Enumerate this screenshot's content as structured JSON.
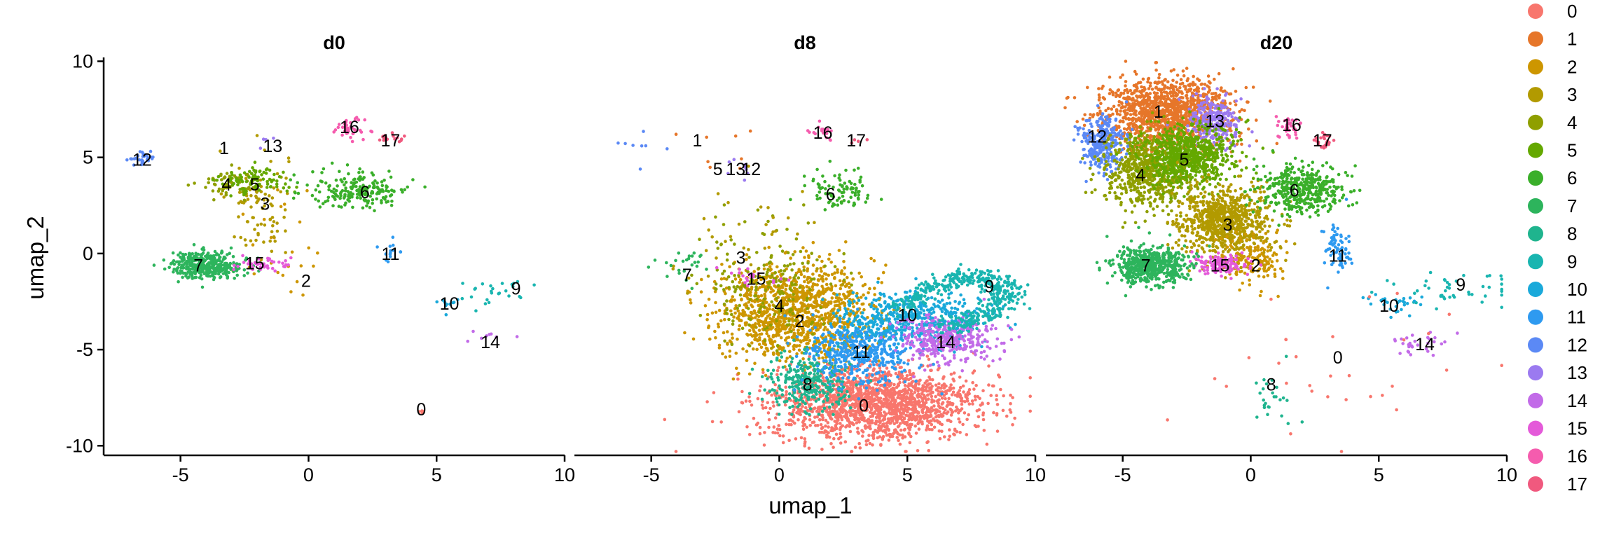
{
  "chart_data": {
    "type": "scatter",
    "title": "",
    "xlabel": "umap_1",
    "ylabel": "umap_2",
    "xlim": [
      -8,
      10
    ],
    "ylim": [
      -10.5,
      10.2
    ],
    "x_ticks": [
      -5,
      0,
      5,
      10
    ],
    "x_tick_labels": [
      "-5",
      "0",
      "5",
      "10"
    ],
    "y_ticks": [
      10,
      5,
      0,
      -5,
      -10
    ],
    "y_tick_labels": [
      "10",
      "5",
      "0",
      "-5",
      "-10"
    ],
    "grid": false,
    "legend_position": "right",
    "legend": [
      {
        "label": "0",
        "color": "#F8766D"
      },
      {
        "label": "1",
        "color": "#E6762A"
      },
      {
        "label": "2",
        "color": "#CD9600"
      },
      {
        "label": "3",
        "color": "#B29A00"
      },
      {
        "label": "4",
        "color": "#8F9F00"
      },
      {
        "label": "5",
        "color": "#64A800"
      },
      {
        "label": "6",
        "color": "#3AAF2A"
      },
      {
        "label": "7",
        "color": "#2DB45C"
      },
      {
        "label": "8",
        "color": "#1FB48E"
      },
      {
        "label": "9",
        "color": "#19B5B0"
      },
      {
        "label": "10",
        "color": "#1AA9DA"
      },
      {
        "label": "11",
        "color": "#2E9AF0"
      },
      {
        "label": "12",
        "color": "#5B89F5"
      },
      {
        "label": "13",
        "color": "#9B7AF0"
      },
      {
        "label": "14",
        "color": "#C26BE8"
      },
      {
        "label": "15",
        "color": "#E45AD9"
      },
      {
        "label": "16",
        "color": "#F55CAE"
      },
      {
        "label": "17",
        "color": "#F0597E"
      }
    ],
    "panels": [
      {
        "title": "d0",
        "cluster_labels": [
          {
            "cluster": "0",
            "x": 4.4,
            "y": -8.1
          },
          {
            "cluster": "1",
            "x": -3.3,
            "y": 5.5
          },
          {
            "cluster": "2",
            "x": -0.1,
            "y": -1.4
          },
          {
            "cluster": "3",
            "x": -1.7,
            "y": 2.6
          },
          {
            "cluster": "4",
            "x": -3.2,
            "y": 3.6
          },
          {
            "cluster": "5",
            "x": -2.1,
            "y": 3.6
          },
          {
            "cluster": "6",
            "x": 2.2,
            "y": 3.2
          },
          {
            "cluster": "7",
            "x": -4.3,
            "y": -0.6
          },
          {
            "cluster": "9",
            "x": 8.1,
            "y": -1.8
          },
          {
            "cluster": "10",
            "x": 5.5,
            "y": -2.6
          },
          {
            "cluster": "11",
            "x": 3.2,
            "y": 0.0
          },
          {
            "cluster": "12",
            "x": -6.5,
            "y": 4.9
          },
          {
            "cluster": "13",
            "x": -1.4,
            "y": 5.6
          },
          {
            "cluster": "14",
            "x": 7.1,
            "y": -4.6
          },
          {
            "cluster": "15",
            "x": -2.1,
            "y": -0.5
          },
          {
            "cluster": "16",
            "x": 1.6,
            "y": 6.6
          },
          {
            "cluster": "17",
            "x": 3.2,
            "y": 5.9
          }
        ],
        "clusters": [
          {
            "cluster": "0",
            "cx": 4.4,
            "cy": -8.1,
            "sx": 0.1,
            "sy": 0.12,
            "n": 4
          },
          {
            "cluster": "2",
            "cx": -1.5,
            "cy": 0.4,
            "sx": 1.4,
            "sy": 2.0,
            "n": 28
          },
          {
            "cluster": "3",
            "cx": -2.0,
            "cy": 2.6,
            "sx": 0.6,
            "sy": 1.4,
            "n": 90
          },
          {
            "cluster": "4",
            "cx": -3.0,
            "cy": 3.7,
            "sx": 0.6,
            "sy": 0.35,
            "n": 70
          },
          {
            "cluster": "5",
            "cx": -2.0,
            "cy": 3.8,
            "sx": 0.7,
            "sy": 0.35,
            "n": 90
          },
          {
            "cluster": "6",
            "cx": 2.0,
            "cy": 3.3,
            "sx": 1.0,
            "sy": 0.5,
            "n": 200
          },
          {
            "cluster": "7",
            "cx": -4.0,
            "cy": -0.6,
            "sx": 0.7,
            "sy": 0.35,
            "n": 350
          },
          {
            "cluster": "9",
            "cx": 7.5,
            "cy": -2.0,
            "sx": 1.0,
            "sy": 0.35,
            "n": 26
          },
          {
            "cluster": "10",
            "cx": 5.4,
            "cy": -2.6,
            "sx": 0.3,
            "sy": 0.25,
            "n": 10
          },
          {
            "cluster": "11",
            "cx": 3.2,
            "cy": 0.0,
            "sx": 0.25,
            "sy": 0.3,
            "n": 14
          },
          {
            "cluster": "12",
            "cx": -6.5,
            "cy": 5.0,
            "sx": 0.3,
            "sy": 0.2,
            "n": 30
          },
          {
            "cluster": "13",
            "cx": -1.5,
            "cy": 5.8,
            "sx": 0.2,
            "sy": 0.2,
            "n": 4
          },
          {
            "cluster": "14",
            "cx": 7.1,
            "cy": -4.3,
            "sx": 0.4,
            "sy": 0.2,
            "n": 8
          },
          {
            "cluster": "15",
            "cx": -1.8,
            "cy": -0.6,
            "sx": 0.6,
            "sy": 0.2,
            "n": 40
          },
          {
            "cluster": "16",
            "cx": 1.6,
            "cy": 6.5,
            "sx": 0.3,
            "sy": 0.25,
            "n": 40
          },
          {
            "cluster": "17",
            "cx": 3.1,
            "cy": 6.0,
            "sx": 0.25,
            "sy": 0.12,
            "n": 20
          }
        ]
      },
      {
        "title": "d8",
        "cluster_labels": [
          {
            "cluster": "0",
            "x": 3.3,
            "y": -7.9
          },
          {
            "cluster": "1",
            "x": -3.2,
            "y": 5.9
          },
          {
            "cluster": "2",
            "x": 0.8,
            "y": -3.5
          },
          {
            "cluster": "3",
            "x": -1.5,
            "y": -0.2
          },
          {
            "cluster": "4",
            "x": 0.0,
            "y": -2.7
          },
          {
            "cluster": "5",
            "x": -2.4,
            "y": 4.4
          },
          {
            "cluster": "6",
            "x": 2.0,
            "y": 3.1
          },
          {
            "cluster": "7",
            "x": -3.6,
            "y": -1.1
          },
          {
            "cluster": "8",
            "x": 1.1,
            "y": -6.8
          },
          {
            "cluster": "9",
            "x": 8.2,
            "y": -1.7
          },
          {
            "cluster": "10",
            "x": 5.0,
            "y": -3.2
          },
          {
            "cluster": "11",
            "x": 3.2,
            "y": -5.1
          },
          {
            "cluster": "12",
            "x": -1.1,
            "y": 4.4
          },
          {
            "cluster": "13",
            "x": -1.7,
            "y": 4.4
          },
          {
            "cluster": "14",
            "x": 6.5,
            "y": -4.6
          },
          {
            "cluster": "15",
            "x": -0.9,
            "y": -1.3
          },
          {
            "cluster": "16",
            "x": 1.7,
            "y": 6.3
          },
          {
            "cluster": "17",
            "x": 3.0,
            "y": 5.9
          }
        ],
        "clusters": [
          {
            "cluster": "0",
            "cx": 3.8,
            "cy": -7.8,
            "sx": 2.0,
            "sy": 0.95,
            "n": 1700
          },
          {
            "cluster": "2",
            "cx": 0.7,
            "cy": -3.0,
            "sx": 1.5,
            "sy": 1.2,
            "n": 1200
          },
          {
            "cluster": "4",
            "cx": -0.5,
            "cy": -1.6,
            "sx": 1.3,
            "sy": 1.5,
            "n": 200
          },
          {
            "cluster": "3",
            "cx": -1.0,
            "cy": 0.5,
            "sx": 1.8,
            "sy": 1.6,
            "n": 40
          },
          {
            "cluster": "8",
            "cx": 1.1,
            "cy": -6.7,
            "sx": 0.8,
            "sy": 0.7,
            "n": 300
          },
          {
            "cluster": "11",
            "cx": 3.2,
            "cy": -5.2,
            "sx": 1.0,
            "sy": 0.8,
            "n": 450
          },
          {
            "cluster": "10",
            "cx": 5.1,
            "cy": -3.4,
            "sx": 1.4,
            "sy": 0.7,
            "n": 500
          },
          {
            "cluster": "14",
            "cx": 6.5,
            "cy": -4.5,
            "sx": 1.0,
            "sy": 0.6,
            "n": 350
          },
          {
            "cluster": "6",
            "cx": 2.3,
            "cy": 3.2,
            "sx": 0.7,
            "sy": 0.5,
            "n": 90
          },
          {
            "cluster": "7",
            "cx": -3.8,
            "cy": -0.8,
            "sx": 0.5,
            "sy": 0.4,
            "n": 25
          },
          {
            "cluster": "15",
            "cx": -1.2,
            "cy": -1.1,
            "sx": 0.6,
            "sy": 0.3,
            "n": 20
          },
          {
            "cluster": "16",
            "cx": 1.7,
            "cy": 6.3,
            "sx": 0.2,
            "sy": 0.3,
            "n": 20
          },
          {
            "cluster": "17",
            "cx": 3.1,
            "cy": 5.9,
            "sx": 0.15,
            "sy": 0.1,
            "n": 4
          },
          {
            "cluster": "13",
            "cx": -1.5,
            "cy": 4.3,
            "sx": 0.4,
            "sy": 0.4,
            "n": 8
          },
          {
            "cluster": "12",
            "cx": -5.8,
            "cy": 5.5,
            "sx": 0.6,
            "sy": 0.6,
            "n": 8
          },
          {
            "cluster": "1",
            "cx": -3.0,
            "cy": 5.5,
            "sx": 1.0,
            "sy": 1.2,
            "n": 8
          }
        ],
        "arcs": [
          {
            "cluster": "9",
            "points": [
              [
                4.6,
                -3.0
              ],
              [
                5.8,
                -1.9
              ],
              [
                7.0,
                -1.3
              ],
              [
                8.2,
                -1.3
              ],
              [
                9.0,
                -1.9
              ],
              [
                8.6,
                -2.8
              ],
              [
                7.6,
                -3.3
              ],
              [
                6.6,
                -3.9
              ]
            ],
            "width": 0.35,
            "n": 450
          }
        ]
      },
      {
        "title": "d20",
        "cluster_labels": [
          {
            "cluster": "0",
            "x": 3.4,
            "y": -5.4
          },
          {
            "cluster": "1",
            "x": -3.6,
            "y": 7.4
          },
          {
            "cluster": "2",
            "x": 0.2,
            "y": -0.6
          },
          {
            "cluster": "3",
            "x": -0.9,
            "y": 1.5
          },
          {
            "cluster": "4",
            "x": -4.3,
            "y": 4.1
          },
          {
            "cluster": "5",
            "x": -2.6,
            "y": 4.9
          },
          {
            "cluster": "6",
            "x": 1.7,
            "y": 3.3
          },
          {
            "cluster": "7",
            "x": -4.1,
            "y": -0.6
          },
          {
            "cluster": "8",
            "x": 0.8,
            "y": -6.8
          },
          {
            "cluster": "9",
            "x": 8.2,
            "y": -1.6
          },
          {
            "cluster": "10",
            "x": 5.4,
            "y": -2.7
          },
          {
            "cluster": "11",
            "x": 3.4,
            "y": -0.1
          },
          {
            "cluster": "12",
            "x": -6.0,
            "y": 6.1
          },
          {
            "cluster": "13",
            "x": -1.4,
            "y": 6.9
          },
          {
            "cluster": "14",
            "x": 6.8,
            "y": -4.7
          },
          {
            "cluster": "15",
            "x": -1.2,
            "y": -0.6
          },
          {
            "cluster": "16",
            "x": 1.6,
            "y": 6.7
          },
          {
            "cluster": "17",
            "x": 2.8,
            "y": 5.9
          }
        ],
        "clusters": [
          {
            "cluster": "1",
            "cx": -3.3,
            "cy": 7.3,
            "sx": 1.3,
            "sy": 0.9,
            "n": 1200
          },
          {
            "cluster": "13",
            "cx": -1.5,
            "cy": 6.9,
            "sx": 0.5,
            "sy": 0.6,
            "n": 250
          },
          {
            "cluster": "12",
            "cx": -5.8,
            "cy": 5.8,
            "sx": 0.45,
            "sy": 0.7,
            "n": 300
          },
          {
            "cluster": "4",
            "cx": -4.0,
            "cy": 4.3,
            "sx": 0.9,
            "sy": 1.0,
            "n": 700
          },
          {
            "cluster": "5",
            "cx": -2.5,
            "cy": 5.1,
            "sx": 0.9,
            "sy": 0.8,
            "n": 700
          },
          {
            "cluster": "3",
            "cx": -1.0,
            "cy": 1.6,
            "sx": 0.9,
            "sy": 0.9,
            "n": 800
          },
          {
            "cluster": "2",
            "cx": 0.0,
            "cy": -0.3,
            "sx": 0.6,
            "sy": 0.6,
            "n": 150
          },
          {
            "cluster": "15",
            "cx": -1.2,
            "cy": -0.6,
            "sx": 0.6,
            "sy": 0.25,
            "n": 120
          },
          {
            "cluster": "7",
            "cx": -3.9,
            "cy": -0.6,
            "sx": 0.7,
            "sy": 0.5,
            "n": 550
          },
          {
            "cluster": "6",
            "cx": 2.0,
            "cy": 3.3,
            "sx": 0.9,
            "sy": 0.6,
            "n": 400
          },
          {
            "cluster": "11",
            "cx": 3.4,
            "cy": 0.3,
            "sx": 0.3,
            "sy": 0.8,
            "n": 70
          },
          {
            "cluster": "16",
            "cx": 1.5,
            "cy": 6.6,
            "sx": 0.25,
            "sy": 0.25,
            "n": 35
          },
          {
            "cluster": "17",
            "cx": 2.8,
            "cy": 5.9,
            "sx": 0.2,
            "sy": 0.2,
            "n": 25
          },
          {
            "cluster": "9",
            "cx": 7.8,
            "cy": -1.9,
            "sx": 1.2,
            "sy": 0.45,
            "n": 45
          },
          {
            "cluster": "10",
            "cx": 5.6,
            "cy": -2.6,
            "sx": 0.5,
            "sy": 0.3,
            "n": 30
          },
          {
            "cluster": "14",
            "cx": 6.5,
            "cy": -4.6,
            "sx": 0.5,
            "sy": 0.35,
            "n": 30
          },
          {
            "cluster": "0",
            "cx": 3.0,
            "cy": -6.0,
            "sx": 2.5,
            "sy": 1.8,
            "n": 30
          },
          {
            "cluster": "8",
            "cx": 0.8,
            "cy": -7.2,
            "sx": 0.4,
            "sy": 0.8,
            "n": 25
          }
        ]
      }
    ]
  }
}
